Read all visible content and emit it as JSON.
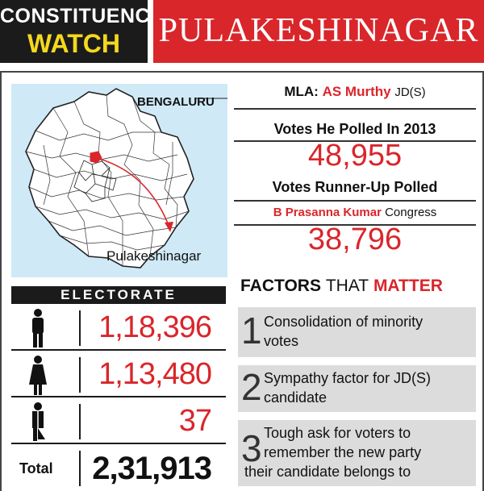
{
  "header": {
    "tag_line1": "CONSTITUENCY",
    "tag_line2": "WATCH",
    "constituency": "PULAKESHINAGAR"
  },
  "map": {
    "city_label": "BENGALURU",
    "place_label": "Pulakeshinagar",
    "highlight_color": "#d9262b",
    "background_color": "#cfe9f7"
  },
  "mla": {
    "label": "MLA:",
    "name": "AS Murthy",
    "party": "JD(S)"
  },
  "votes_polled": {
    "label": "Votes He Polled In 2013",
    "value": "48,955"
  },
  "runner_up": {
    "label": "Votes Runner-Up Polled",
    "name": "B Prasanna Kumar",
    "party": "Congress",
    "value": "38,796"
  },
  "electorate": {
    "title": "ELECTORATE",
    "rows": [
      {
        "icon": "male-icon",
        "value": "1,18,396"
      },
      {
        "icon": "female-icon",
        "value": "1,13,480"
      },
      {
        "icon": "third-gender-icon",
        "value": "37"
      }
    ],
    "total_label": "Total",
    "total_value": "2,31,913"
  },
  "factors": {
    "title_part1": "FACTORS",
    "title_part2": "THAT",
    "title_part3": "MATTER",
    "items": [
      {
        "num": "1",
        "text_line1": "Consolidation of minority",
        "text_line2": "votes"
      },
      {
        "num": "2",
        "text_line1": "Sympathy factor for JD(S)",
        "text_line2": "candidate"
      },
      {
        "num": "3",
        "text_line1": "Tough ask for voters to",
        "text_line2": "remember the new party",
        "text_line3": "their candidate belongs to"
      }
    ]
  },
  "colors": {
    "accent_red": "#d9262b",
    "dark": "#1b1b1b",
    "yellow": "#f5d81e",
    "box_grey": "#dcdcdc"
  }
}
